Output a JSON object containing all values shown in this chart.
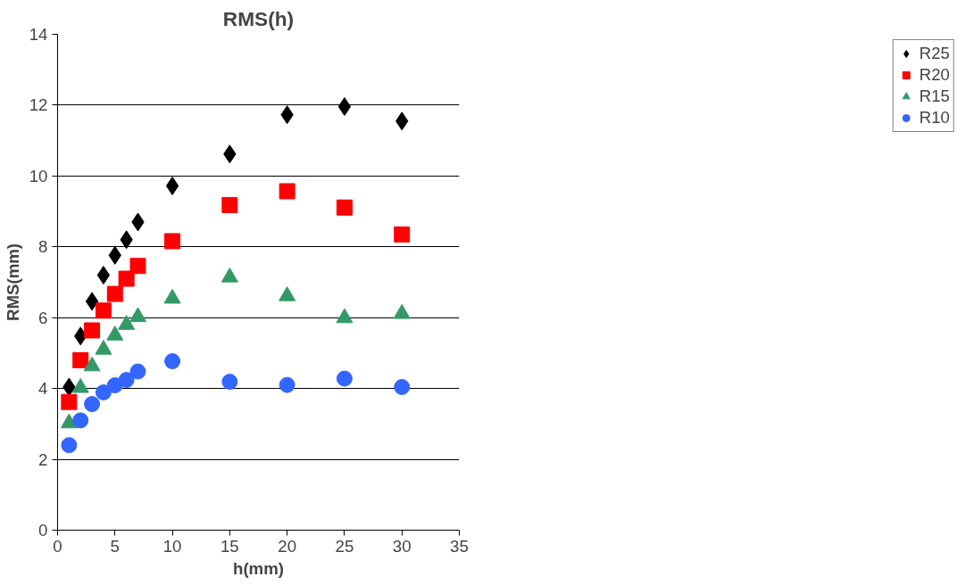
{
  "chart_data": {
    "type": "scatter",
    "title": "RMS(h)",
    "xlabel": "h(mm)",
    "ylabel": "RMS(mm)",
    "x": [
      1,
      2,
      3,
      4,
      5,
      6,
      7,
      10,
      15,
      20,
      25,
      30
    ],
    "series": [
      {
        "name": "R25",
        "color": "#000000",
        "marker": "diamond",
        "values": [
          4.04,
          5.48,
          6.46,
          7.2,
          7.76,
          8.2,
          8.7,
          9.72,
          10.62,
          11.73,
          11.96,
          11.55
        ]
      },
      {
        "name": "R20",
        "color": "#ff0000",
        "marker": "square",
        "values": [
          3.62,
          4.8,
          5.64,
          6.2,
          6.67,
          7.1,
          7.46,
          8.16,
          9.18,
          9.57,
          9.11,
          8.35
        ]
      },
      {
        "name": "R15",
        "color": "#339966",
        "marker": "triangle",
        "values": [
          3.02,
          4.02,
          4.63,
          5.1,
          5.5,
          5.8,
          6.02,
          6.54,
          7.14,
          6.61,
          5.99,
          6.11
        ]
      },
      {
        "name": "R10",
        "color": "#3366ff",
        "marker": "circle",
        "values": [
          2.4,
          3.1,
          3.56,
          3.89,
          4.09,
          4.24,
          4.48,
          4.77,
          4.19,
          4.1,
          4.28,
          4.04
        ]
      }
    ],
    "xlim": [
      0,
      35
    ],
    "xticks": [
      0,
      5,
      10,
      15,
      20,
      25,
      30,
      35
    ],
    "ylim": [
      0,
      14
    ],
    "yticks": [
      0,
      2,
      4,
      6,
      8,
      10,
      12,
      14
    ],
    "grid": "y",
    "legend": "right"
  }
}
